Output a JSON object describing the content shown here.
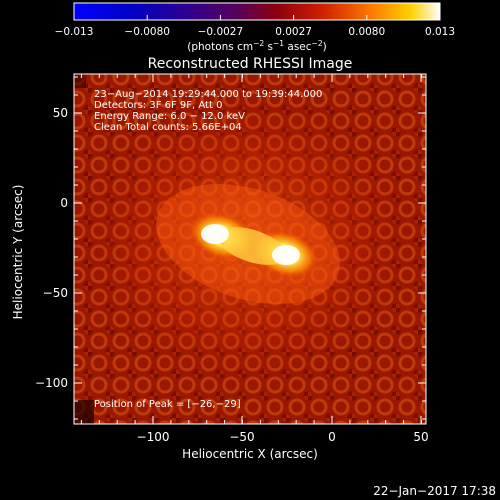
{
  "colorbar": {
    "ticks": [
      "−0.013",
      "−0.0080",
      "−0.0027",
      "0.0027",
      "0.0080",
      "0.013"
    ],
    "units_prefix": "(photons cm",
    "units_exp1": "−2",
    "units_mid": " s",
    "units_exp2": "−1",
    "units_mid2": " asec",
    "units_exp3": "−2",
    "units_suffix": ")"
  },
  "image": {
    "title": "Reconstructed RHESSI Image",
    "info_lines": [
      "23−Aug−2014 19:29:44.000 to 19:39:44.000",
      "Detectors: 3F 6F 9F, Att 0",
      "Energy Range: 6.0 − 12.0 keV",
      "Clean    Total counts: 5.66E+04"
    ],
    "peak_text": "Position of Peak = [−26,−29]",
    "xlabel": "Heliocentric X (arcsec)",
    "ylabel": "Heliocentric Y (arcsec)",
    "xticks": [
      "−100",
      "−50",
      "0",
      "50"
    ],
    "yticks": [
      "50",
      "0",
      "−50",
      "−100"
    ]
  },
  "timestamp": "22−Jan−2017 17:38",
  "colors": {
    "background": "#000000",
    "text": "#ffffff"
  }
}
